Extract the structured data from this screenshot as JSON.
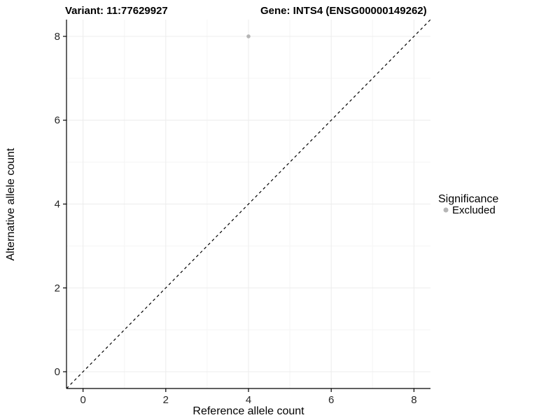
{
  "titles": {
    "left": "Variant: 11:77629927",
    "right": "Gene: INTS4 (ENSG00000149262)"
  },
  "legend": {
    "title": "Significance",
    "items": [
      {
        "label": "Excluded",
        "color": "#b5b5b5"
      }
    ]
  },
  "chart_data": {
    "type": "scatter",
    "title": "Variant: 11:77629927  /  Gene: INTS4 (ENSG00000149262)",
    "xlabel": "Reference allele count",
    "ylabel": "Alternative allele count",
    "xlim": [
      -0.4,
      8.4
    ],
    "ylim": [
      -0.4,
      8.4
    ],
    "x_ticks": [
      0,
      2,
      4,
      6,
      8
    ],
    "y_ticks": [
      0,
      2,
      4,
      6,
      8
    ],
    "grid": true,
    "legend_position": "right",
    "points": [
      {
        "x": 4,
        "y": 8,
        "series": "Excluded",
        "color": "#b5b5b5"
      }
    ],
    "reference_line": {
      "kind": "identity",
      "slope": 1,
      "intercept": 0,
      "style": "dashed",
      "color": "#000000"
    }
  },
  "colors": {
    "background": "#ffffff",
    "grid_major": "#ececec",
    "grid_minor": "#f5f5f5",
    "axis": "#000000",
    "point": "#b5b5b5"
  }
}
